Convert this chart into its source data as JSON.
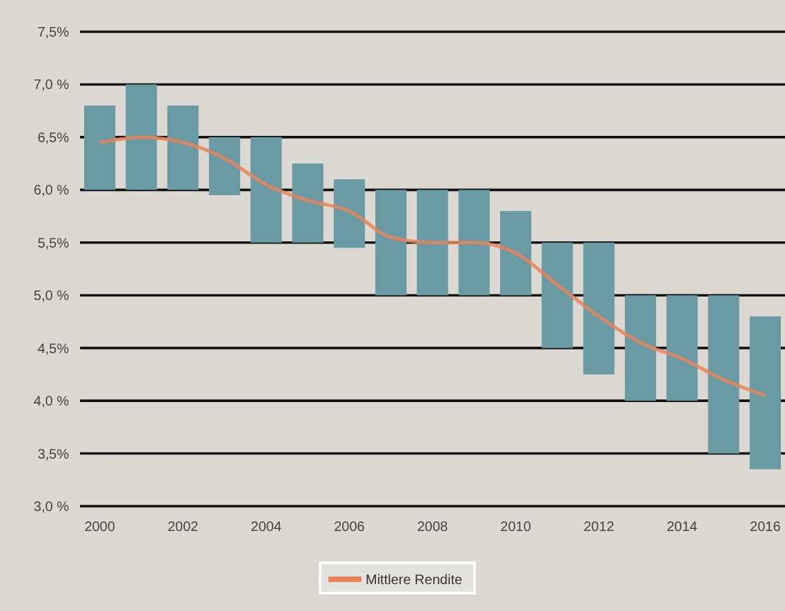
{
  "chart_data": {
    "type": "bar",
    "categories": [
      "2000",
      null,
      "2002",
      null,
      "2004",
      null,
      "2006",
      null,
      "2008",
      null,
      "2010",
      null,
      "2012",
      null,
      "2014",
      null,
      "2016"
    ],
    "series": [
      {
        "color": "#6a9aa4",
        "base": [
          6.0,
          6.0,
          6.0,
          5.95,
          5.5,
          5.5,
          5.45,
          5.0,
          5.0,
          5.0,
          5.0,
          4.5,
          4.25,
          4.0,
          4.0,
          3.5,
          3.35
        ],
        "values": [
          0.8,
          1.0,
          0.8,
          0.55,
          1.0,
          0.75,
          0.65,
          1.0,
          1.0,
          1.0,
          0.8,
          1.0,
          1.25,
          1.0,
          1.0,
          1.5,
          1.45
        ]
      },
      {
        "type": "line",
        "name": "Mittlere Rendite",
        "color": "#e8845a",
        "values": [
          6.45,
          6.5,
          6.45,
          6.3,
          6.05,
          5.9,
          5.8,
          5.55,
          5.5,
          5.5,
          5.4,
          5.1,
          4.8,
          4.55,
          4.4,
          4.2,
          4.05
        ]
      }
    ],
    "ylim": [
      3.0,
      7.5
    ],
    "yticks": [
      {
        "value": 3.0,
        "label": "3,0 %"
      },
      {
        "value": 3.5,
        "label": "3,5%"
      },
      {
        "value": 4.0,
        "label": "4,0 %"
      },
      {
        "value": 4.5,
        "label": "4,5%"
      },
      {
        "value": 5.0,
        "label": "5,0 %"
      },
      {
        "value": 5.5,
        "label": "5,5%"
      },
      {
        "value": 6.0,
        "label": "6,0 %"
      },
      {
        "value": 6.5,
        "label": "6,5%"
      },
      {
        "value": 7.0,
        "label": "7,0 %"
      },
      {
        "value": 7.5,
        "label": "7,5%"
      }
    ],
    "grid": "y",
    "legend": "bottom",
    "line_style": "solid",
    "marker": "none"
  }
}
